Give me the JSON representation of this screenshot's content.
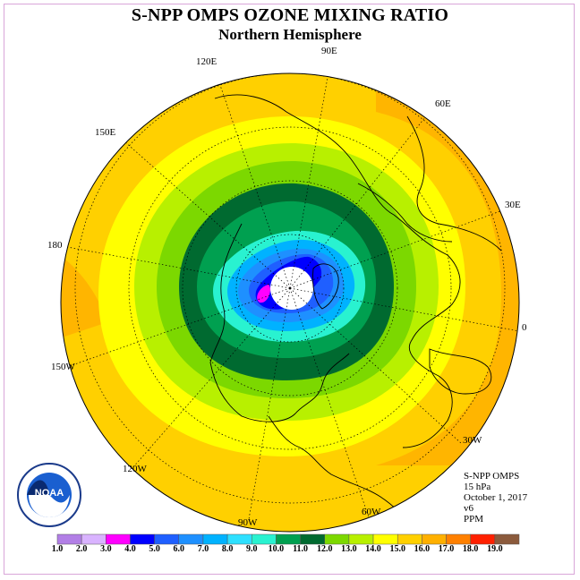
{
  "title": "S-NPP OMPS OZONE MIXING RATIO",
  "subtitle": "Northern Hemisphere",
  "longitude_labels": {
    "e90": "90E",
    "e120": "120E",
    "e60": "60E",
    "e150": "150E",
    "e30": "30E",
    "d180": "180",
    "d0": "0",
    "w150": "150W",
    "w30": "30W",
    "w120": "120W",
    "w60": "60W",
    "w90": "90W"
  },
  "info": {
    "instrument": "S-NPP OMPS",
    "level": "15 hPa",
    "date": "October 1, 2017",
    "version": "v6",
    "units": "PPM"
  },
  "logo": {
    "text": "NOAA",
    "icon": "noaa-logo"
  },
  "colorbar": {
    "ticks": [
      "1.0",
      "2.0",
      "3.0",
      "4.0",
      "5.0",
      "6.0",
      "7.0",
      "8.0",
      "9.0",
      "10.0",
      "11.0",
      "12.0",
      "13.0",
      "14.0",
      "15.0",
      "16.0",
      "17.0",
      "18.0",
      "19.0"
    ],
    "colors": [
      "#b27fe6",
      "#d9b3ff",
      "#ff00ff",
      "#0000ff",
      "#1f5fff",
      "#1e90ff",
      "#00b2ff",
      "#2ee0ff",
      "#29f2d0",
      "#00a050",
      "#006a30",
      "#7cd800",
      "#b8f000",
      "#ffff00",
      "#ffd000",
      "#ffb000",
      "#ff8000",
      "#ff2000",
      "#8b5a3c"
    ]
  },
  "colors": {
    "polar_night": "#ffffff",
    "background": "#ffffff",
    "frame": "#d9a6d9"
  }
}
